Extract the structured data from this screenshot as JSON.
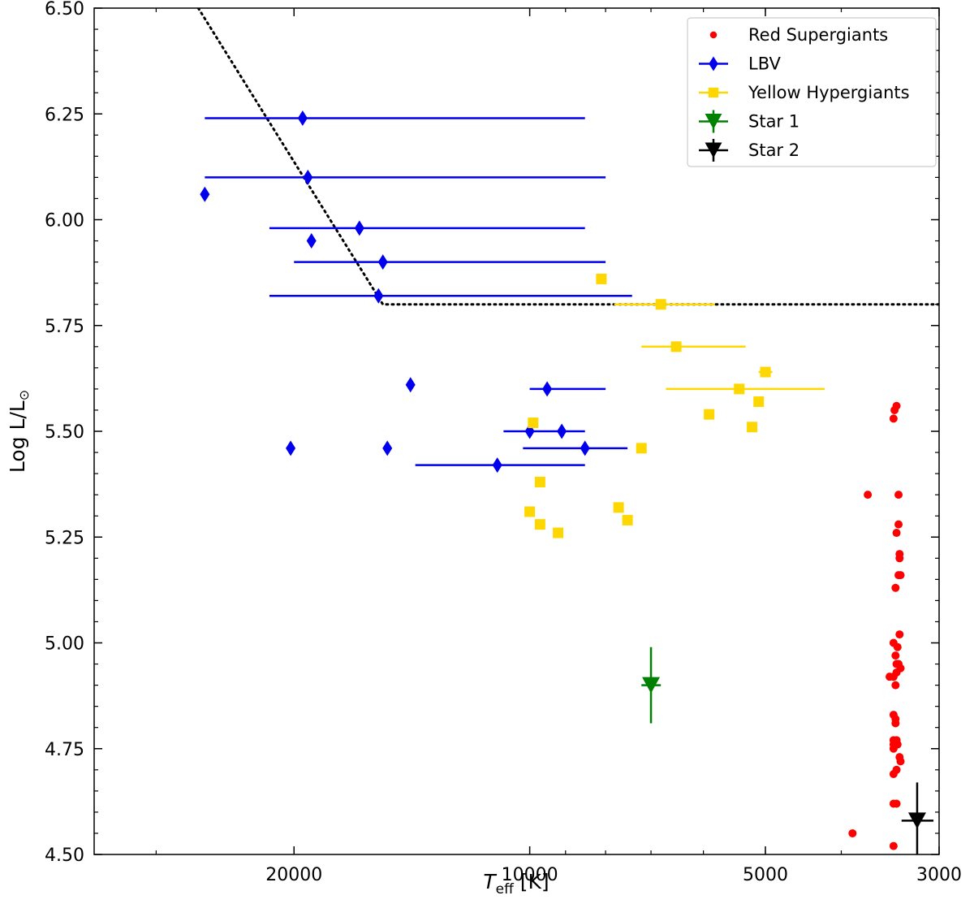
{
  "chart_data": {
    "type": "scatter",
    "xlabel": "T",
    "xlabel_sub": "eff",
    "xlabel_unit": "[K]",
    "ylabel": "Log L/L",
    "ylabel_sun": "⊙",
    "x_scale": "log-reversed",
    "xlim": [
      36000,
      3000
    ],
    "ylim": [
      4.5,
      6.5
    ],
    "x_ticks": [
      20000,
      10000,
      5000,
      3000
    ],
    "x_tick_labels": [
      "20000",
      "10000",
      "5000",
      "3000"
    ],
    "y_ticks": [
      4.5,
      4.75,
      5.0,
      5.25,
      5.5,
      5.75,
      6.0,
      6.25,
      6.5
    ],
    "y_tick_labels": [
      "4.50",
      "4.75",
      "5.00",
      "5.25",
      "5.50",
      "5.75",
      "6.00",
      "6.25",
      "6.50"
    ],
    "grid": false,
    "legend_position": "top-right",
    "hd_limit": {
      "style": "dotted",
      "points": [
        [
          26500,
          6.5
        ],
        [
          15400,
          5.8
        ],
        [
          3000,
          5.8
        ]
      ]
    },
    "series": [
      {
        "name": "Red Supergiants",
        "marker": "circle",
        "color": "#ff0000",
        "points": [
          [
            3400,
            5.56
          ],
          [
            3420,
            5.55
          ],
          [
            3430,
            5.53
          ],
          [
            3380,
            5.35
          ],
          [
            3380,
            5.28
          ],
          [
            3400,
            5.26
          ],
          [
            3370,
            5.21
          ],
          [
            3370,
            5.2
          ],
          [
            3380,
            5.16
          ],
          [
            3360,
            5.16
          ],
          [
            3410,
            5.13
          ],
          [
            3370,
            5.02
          ],
          [
            3430,
            5.0
          ],
          [
            3390,
            4.99
          ],
          [
            3410,
            4.97
          ],
          [
            3400,
            4.95
          ],
          [
            3380,
            4.95
          ],
          [
            3360,
            4.94
          ],
          [
            3400,
            4.93
          ],
          [
            3430,
            4.92
          ],
          [
            3470,
            4.92
          ],
          [
            3410,
            4.9
          ],
          [
            3430,
            4.83
          ],
          [
            3410,
            4.82
          ],
          [
            3410,
            4.81
          ],
          [
            3430,
            4.77
          ],
          [
            3400,
            4.77
          ],
          [
            3390,
            4.76
          ],
          [
            3430,
            4.76
          ],
          [
            3430,
            4.75
          ],
          [
            3370,
            4.73
          ],
          [
            3360,
            4.72
          ],
          [
            3400,
            4.7
          ],
          [
            3430,
            4.69
          ],
          [
            3430,
            4.62
          ],
          [
            3400,
            4.62
          ],
          [
            3700,
            5.35
          ],
          [
            3870,
            4.55
          ],
          [
            3430,
            4.52
          ]
        ]
      },
      {
        "name": "LBV",
        "marker": "diamond",
        "color": "#0000ee",
        "points": [
          {
            "x": 26000,
            "y": 6.06
          },
          {
            "x": 19500,
            "y": 6.24,
            "xerr": [
              26000,
              8500
            ]
          },
          {
            "x": 19200,
            "y": 6.1,
            "xerr": [
              26000,
              8000
            ]
          },
          {
            "x": 19000,
            "y": 5.95
          },
          {
            "x": 16500,
            "y": 5.98,
            "xerr": [
              21500,
              8500
            ]
          },
          {
            "x": 15400,
            "y": 5.9,
            "xerr": [
              20000,
              8000
            ]
          },
          {
            "x": 15600,
            "y": 5.82,
            "xerr": [
              21500,
              7400
            ]
          },
          {
            "x": 20200,
            "y": 5.46
          },
          {
            "x": 15200,
            "y": 5.46
          },
          {
            "x": 14200,
            "y": 5.61
          },
          {
            "x": 9500,
            "y": 5.6,
            "xerr": [
              10000,
              8000
            ]
          },
          {
            "x": 10000,
            "y": 5.5,
            "xerr": [
              10800,
              8500
            ]
          },
          {
            "x": 9100,
            "y": 5.5
          },
          {
            "x": 8500,
            "y": 5.46,
            "xerr": [
              10200,
              7500
            ]
          },
          {
            "x": 11000,
            "y": 5.42,
            "xerr": [
              14000,
              8500
            ]
          }
        ]
      },
      {
        "name": "Yellow Hypergiants",
        "marker": "square",
        "color": "#ffd700",
        "points": [
          {
            "x": 8100,
            "y": 5.86
          },
          {
            "x": 6800,
            "y": 5.8,
            "xerr": [
              7800,
              5800
            ]
          },
          {
            "x": 6500,
            "y": 5.7,
            "xerr": [
              7200,
              5300
            ]
          },
          {
            "x": 5000,
            "y": 5.64,
            "xerr": [
              5100,
              4900
            ]
          },
          {
            "x": 5400,
            "y": 5.6,
            "xerr": [
              6700,
              4200
            ]
          },
          {
            "x": 5100,
            "y": 5.57
          },
          {
            "x": 5900,
            "y": 5.54
          },
          {
            "x": 5200,
            "y": 5.51
          },
          {
            "x": 9900,
            "y": 5.52
          },
          {
            "x": 7200,
            "y": 5.46
          },
          {
            "x": 9700,
            "y": 5.38
          },
          {
            "x": 10000,
            "y": 5.31
          },
          {
            "x": 9700,
            "y": 5.28
          },
          {
            "x": 9200,
            "y": 5.26
          },
          {
            "x": 7700,
            "y": 5.32
          },
          {
            "x": 7500,
            "y": 5.29
          }
        ]
      },
      {
        "name": "Star 1",
        "marker": "triangle-down",
        "color": "#008000",
        "points": [
          {
            "x": 7000,
            "y": 4.9,
            "xerr": [
              7200,
              6800
            ],
            "yerr": [
              4.81,
              4.99
            ]
          }
        ]
      },
      {
        "name": "Star 2",
        "marker": "triangle-down",
        "color": "#000000",
        "points": [
          {
            "x": 3200,
            "y": 4.58,
            "xerr": [
              3350,
              3050
            ],
            "yerr": [
              4.5,
              4.67
            ]
          }
        ]
      }
    ]
  }
}
